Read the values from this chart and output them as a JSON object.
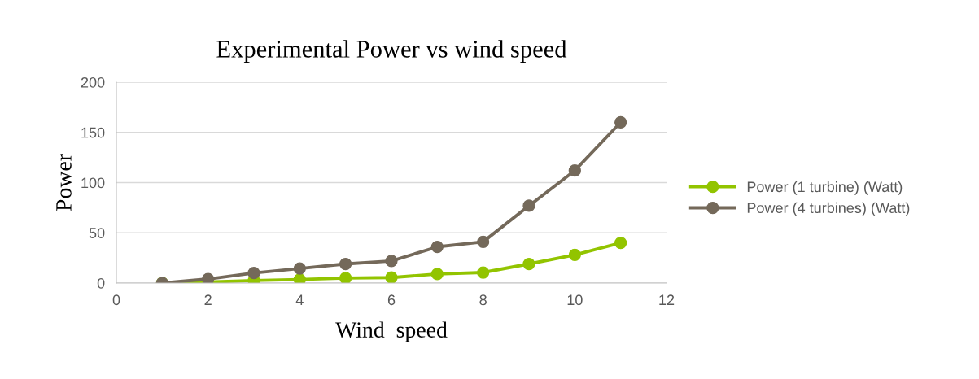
{
  "chart_data": {
    "type": "line",
    "title": "Experimental Power vs wind speed",
    "xlabel": "Wind  speed",
    "ylabel": "Power",
    "x": [
      1,
      2,
      3,
      4,
      5,
      6,
      7,
      8,
      9,
      10,
      11
    ],
    "series": [
      {
        "name": "Power (1 turbine) (Watt)",
        "color": "#92c400",
        "values": [
          0,
          1,
          2.5,
          3.5,
          5,
          5.5,
          9,
          10.5,
          19,
          28,
          40
        ]
      },
      {
        "name": "Power (4 turbines) (Watt)",
        "color": "#74695a",
        "values": [
          0,
          4,
          10,
          14.5,
          19,
          22,
          36,
          41,
          77,
          112,
          160
        ]
      }
    ],
    "xlim": [
      0,
      12
    ],
    "xticks": [
      0,
      2,
      4,
      6,
      8,
      10,
      12
    ],
    "ylim": [
      0,
      200
    ],
    "yticks": [
      0,
      50,
      100,
      150,
      200
    ],
    "grid": "y",
    "legend": "right",
    "marker": "circle",
    "line_style": "solid"
  }
}
